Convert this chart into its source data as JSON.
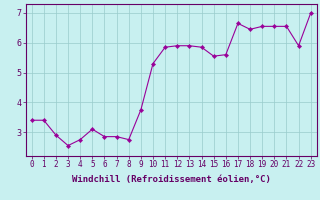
{
  "x": [
    0,
    1,
    2,
    3,
    4,
    5,
    6,
    7,
    8,
    9,
    10,
    11,
    12,
    13,
    14,
    15,
    16,
    17,
    18,
    19,
    20,
    21,
    22,
    23
  ],
  "y": [
    3.4,
    3.4,
    2.9,
    2.55,
    2.75,
    3.1,
    2.85,
    2.85,
    2.75,
    3.75,
    5.3,
    5.85,
    5.9,
    5.9,
    5.85,
    5.55,
    5.6,
    6.65,
    6.45,
    6.55,
    6.55,
    6.55,
    5.9,
    7.0
  ],
  "xlabel": "Windchill (Refroidissement éolien,°C)",
  "line_color": "#990099",
  "marker_color": "#990099",
  "bg_color": "#c8f0f0",
  "grid_color": "#99cccc",
  "axis_color": "#660066",
  "tick_color": "#660066",
  "ylim": [
    2.2,
    7.3
  ],
  "yticks": [
    3,
    4,
    5,
    6,
    7
  ],
  "xticks": [
    0,
    1,
    2,
    3,
    4,
    5,
    6,
    7,
    8,
    9,
    10,
    11,
    12,
    13,
    14,
    15,
    16,
    17,
    18,
    19,
    20,
    21,
    22,
    23
  ],
  "xlabel_fontsize": 6.5,
  "tick_fontsize": 5.5
}
